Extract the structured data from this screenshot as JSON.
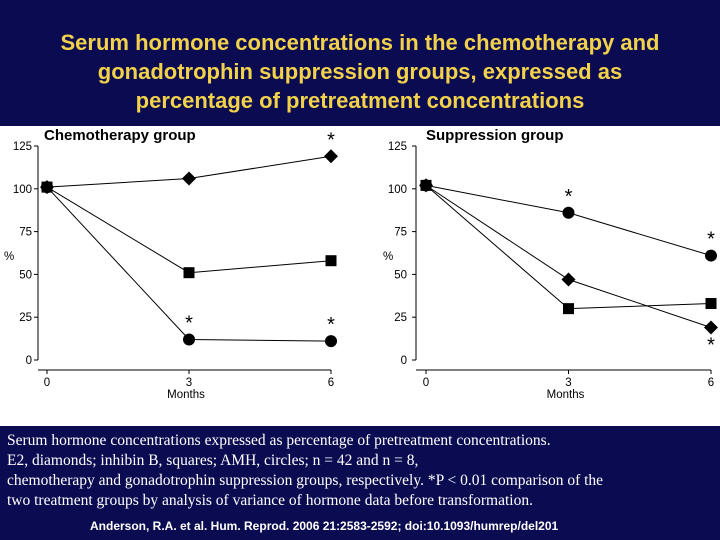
{
  "title": {
    "line1": "Serum hormone concentrations in the chemotherapy and",
    "line2": "gonadotrophin suppression groups, expressed as",
    "line3": "percentage of pretreatment concentrations"
  },
  "chart_data": [
    {
      "type": "line",
      "title": "Chemotherapy group",
      "xlabel": "Months",
      "ylabel": "%",
      "x": [
        0,
        3,
        6
      ],
      "xticks": [
        "0",
        "3",
        "6"
      ],
      "yticks": [
        "0",
        "25",
        "50",
        "75",
        "100",
        "125"
      ],
      "ylim": [
        0,
        125
      ],
      "series": [
        {
          "name": "E2",
          "marker": "diamond",
          "values": [
            101,
            106,
            119
          ],
          "significant": [
            false,
            false,
            true
          ]
        },
        {
          "name": "inhibin B",
          "marker": "square",
          "values": [
            101,
            51,
            58
          ],
          "significant": [
            false,
            false,
            false
          ]
        },
        {
          "name": "AMH",
          "marker": "circle",
          "values": [
            101,
            12,
            11
          ],
          "significant": [
            false,
            true,
            true
          ]
        }
      ]
    },
    {
      "type": "line",
      "title": "Suppression group",
      "xlabel": "Months",
      "ylabel": "%",
      "x": [
        0,
        3,
        6
      ],
      "xticks": [
        "0",
        "3",
        "6"
      ],
      "yticks": [
        "0",
        "25",
        "50",
        "75",
        "100",
        "125"
      ],
      "ylim": [
        0,
        125
      ],
      "series": [
        {
          "name": "E2",
          "marker": "diamond",
          "values": [
            102,
            47,
            19
          ],
          "significant": [
            false,
            false,
            true
          ]
        },
        {
          "name": "inhibin B",
          "marker": "square",
          "values": [
            102,
            30,
            33
          ],
          "significant": [
            false,
            false,
            false
          ]
        },
        {
          "name": "AMH",
          "marker": "circle",
          "values": [
            102,
            86,
            61
          ],
          "significant": [
            false,
            true,
            true
          ]
        }
      ]
    }
  ],
  "caption": {
    "line1": "Serum hormone concentrations expressed as percentage of pretreatment concentrations.",
    "line2": "E2, diamonds; inhibin B, squares; AMH, circles; n = 42 and n = 8,",
    "line3": "chemotherapy and gonadotrophin suppression groups, respectively. *P < 0.01 comparison of the",
    "line4": "two treatment groups by analysis of variance of hormone data before transformation."
  },
  "citation": "Anderson, R.A. et al. Hum. Reprod. 2006 21:2583-2592; doi:10.1093/humrep/del201",
  "significance_marker": "*",
  "colors": {
    "background": "#0b0b52",
    "title": "#f2d24a",
    "panel": "#ffffff",
    "ink": "#000000"
  }
}
